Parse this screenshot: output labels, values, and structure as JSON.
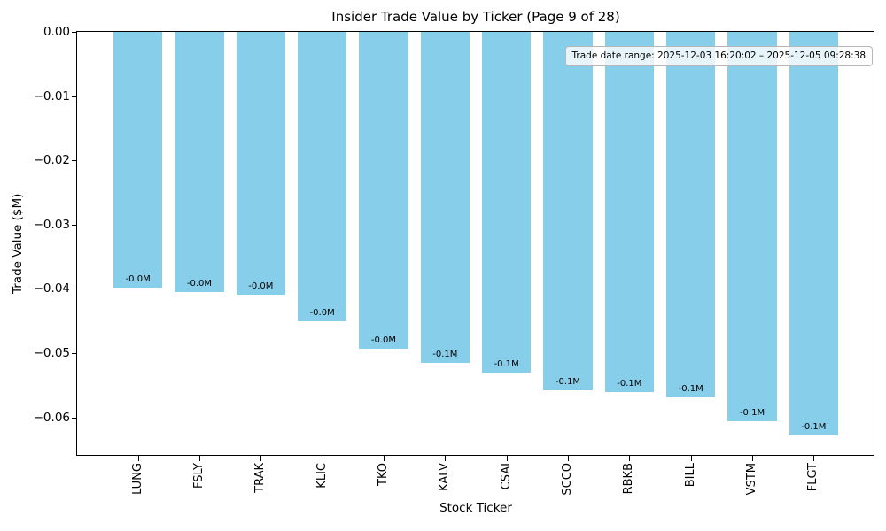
{
  "figure": {
    "background": "#ffffff"
  },
  "chart_data": {
    "type": "bar",
    "title": "Insider Trade Value by Ticker (Page 9 of 28)",
    "xlabel": "Stock Ticker",
    "ylabel": "Trade Value ($M)",
    "categories": [
      "LUNG",
      "FSLY",
      "TRAK",
      "KLIC",
      "TKO",
      "KALV",
      "CSAI",
      "SCCO",
      "RBKB",
      "BILL",
      "VSTM",
      "FLGT"
    ],
    "values": [
      -0.0398,
      -0.0405,
      -0.0409,
      -0.0451,
      -0.0493,
      -0.0515,
      -0.053,
      -0.0558,
      -0.0561,
      -0.0569,
      -0.0606,
      -0.0628
    ],
    "bar_labels": [
      "-0.0M",
      "-0.0M",
      "-0.0M",
      "-0.0M",
      "-0.0M",
      "-0.1M",
      "-0.1M",
      "-0.1M",
      "-0.1M",
      "-0.1M",
      "-0.1M",
      "-0.1M"
    ],
    "bar_color": "#87ceeb",
    "ylim": [
      -0.0659,
      0
    ],
    "yticks": [
      0,
      -0.01,
      -0.02,
      -0.03,
      -0.04,
      -0.05,
      -0.06
    ],
    "ytick_labels": [
      "0.00",
      "−0.01",
      "−0.02",
      "−0.03",
      "−0.04",
      "−0.05",
      "−0.06"
    ],
    "grid": false,
    "legend_position": "none",
    "annotation": "Trade date range: 2025-12-03 16:20:02 – 2025-12-05 09:28:38"
  }
}
